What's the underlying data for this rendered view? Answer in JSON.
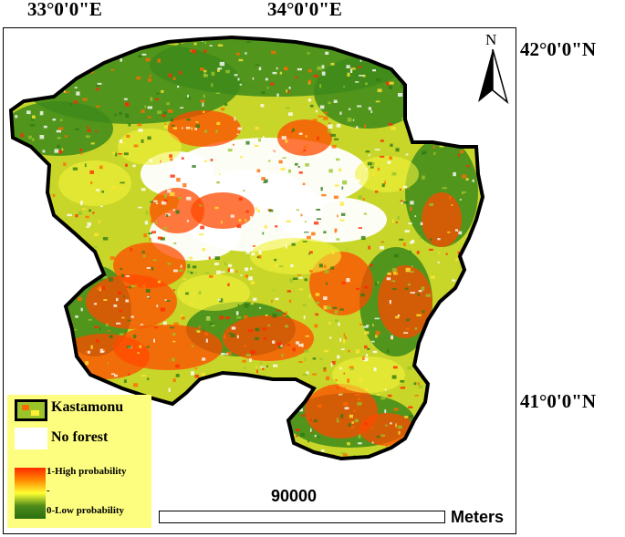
{
  "axes": {
    "lon_labels": [
      "33°0'0\"E",
      "34°0'0\"E"
    ],
    "lat_labels": [
      "42°0'0\"N",
      "41°0'0\"N"
    ]
  },
  "north_arrow": {
    "label": "N"
  },
  "legend": {
    "boundary_label": "Kastamonu",
    "no_forest_label": "No forest",
    "high_label": "1-High probability",
    "mid_label": "-",
    "low_label": "0-Low probability",
    "ramp_colors": [
      "#ff2a00",
      "#ff8c00",
      "#ffff33",
      "#4d8c1a",
      "#2a6e10"
    ]
  },
  "scale_bar": {
    "distance": "90000",
    "unit": "Meters"
  },
  "colors": {
    "legend_bg": "#fdfd7f",
    "high": "#ff3300",
    "low": "#2f7a14",
    "boundary": "#000000"
  }
}
